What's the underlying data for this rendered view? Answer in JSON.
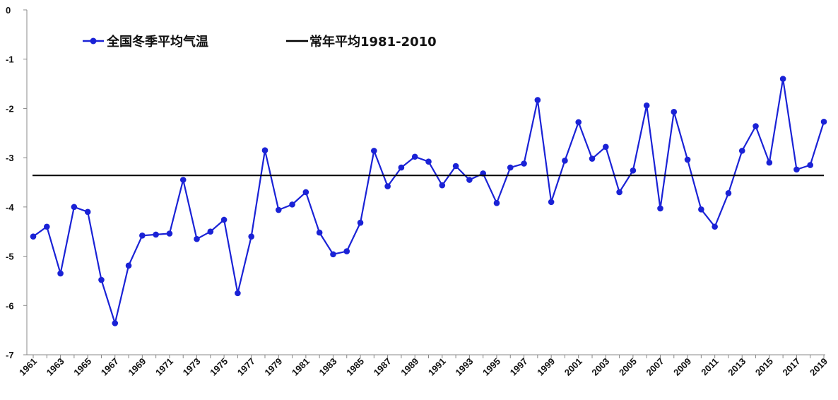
{
  "chart_data": {
    "type": "line",
    "title": "",
    "xlabel": "",
    "ylabel": "",
    "ylim": [
      -7,
      0
    ],
    "yticks": [
      0,
      -1,
      -2,
      -3,
      -4,
      -5,
      -6,
      -7
    ],
    "grid": false,
    "legend_position": "top-left",
    "x": [
      1961,
      1962,
      1963,
      1964,
      1965,
      1966,
      1967,
      1968,
      1969,
      1970,
      1971,
      1972,
      1973,
      1974,
      1975,
      1976,
      1977,
      1978,
      1979,
      1980,
      1981,
      1982,
      1983,
      1984,
      1985,
      1986,
      1987,
      1988,
      1989,
      1990,
      1991,
      1992,
      1993,
      1994,
      1995,
      1996,
      1997,
      1998,
      1999,
      2000,
      2001,
      2002,
      2003,
      2004,
      2005,
      2006,
      2007,
      2008,
      2009,
      2010,
      2011,
      2012,
      2013,
      2014,
      2015,
      2016,
      2017,
      2018,
      2019
    ],
    "xtick_labels": [
      "1961",
      "1963",
      "1965",
      "1967",
      "1969",
      "1971",
      "1973",
      "1975",
      "1977",
      "1979",
      "1981",
      "1983",
      "1985",
      "1987",
      "1989",
      "1991",
      "1993",
      "1995",
      "1997",
      "1999",
      "2001",
      "2003",
      "2005",
      "2007",
      "2009",
      "2011",
      "2013",
      "2015",
      "2017",
      "2019"
    ],
    "series": [
      {
        "name": "全国冬季平均气温",
        "color": "#1a22d6",
        "marker": "circle",
        "values": [
          -4.6,
          -4.4,
          -5.35,
          -4.0,
          -4.1,
          -5.48,
          -6.36,
          -5.19,
          -4.58,
          -4.56,
          -4.54,
          -3.45,
          -4.65,
          -4.5,
          -4.26,
          -5.75,
          -4.6,
          -2.85,
          -4.06,
          -3.95,
          -3.7,
          -4.52,
          -4.96,
          -4.9,
          -4.32,
          -2.86,
          -3.58,
          -3.2,
          -2.98,
          -3.08,
          -3.56,
          -3.17,
          -3.45,
          -3.32,
          -3.92,
          -3.2,
          -3.12,
          -1.83,
          -3.9,
          -3.06,
          -2.28,
          -3.02,
          -2.78,
          -3.7,
          -3.26,
          -1.94,
          -4.03,
          -2.07,
          -3.04,
          -4.05,
          -4.4,
          -3.72,
          -2.86,
          -2.36,
          -3.1,
          -1.4,
          -3.24,
          -3.15,
          -2.27
        ]
      },
      {
        "name": "常年平均1981-2010",
        "color": "#000000",
        "constant": -3.36
      }
    ]
  }
}
